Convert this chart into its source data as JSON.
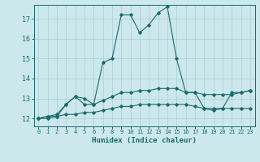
{
  "background_color": "#cce8ec",
  "grid_color": "#aacdd4",
  "line_color": "#1a6b6b",
  "xlabel": "Humidex (Indice chaleur)",
  "xlim": [
    -0.5,
    23.5
  ],
  "ylim": [
    11.6,
    17.7
  ],
  "yticks": [
    12,
    13,
    14,
    15,
    16,
    17
  ],
  "xticks": [
    0,
    1,
    2,
    3,
    4,
    5,
    6,
    7,
    8,
    9,
    10,
    11,
    12,
    13,
    14,
    15,
    16,
    17,
    18,
    19,
    20,
    21,
    22,
    23
  ],
  "series1_x": [
    0,
    1,
    2,
    3,
    4,
    5,
    6,
    7,
    8,
    9,
    10,
    11,
    12,
    13,
    14,
    15,
    16,
    17,
    18,
    19,
    20,
    21,
    22,
    23
  ],
  "series1_y": [
    12.0,
    12.1,
    12.1,
    12.7,
    13.1,
    13.0,
    12.7,
    14.8,
    15.0,
    17.2,
    17.2,
    16.3,
    16.7,
    17.3,
    17.6,
    15.0,
    13.3,
    13.3,
    12.5,
    12.4,
    12.5,
    13.3,
    13.3,
    13.4
  ],
  "series2_x": [
    0,
    1,
    2,
    3,
    4,
    5,
    6,
    7,
    8,
    9,
    10,
    11,
    12,
    13,
    14,
    15,
    16,
    17,
    18,
    19,
    20,
    21,
    22,
    23
  ],
  "series2_y": [
    12.0,
    12.1,
    12.2,
    12.7,
    13.1,
    12.7,
    12.7,
    12.9,
    13.1,
    13.3,
    13.3,
    13.4,
    13.4,
    13.5,
    13.5,
    13.5,
    13.3,
    13.3,
    13.2,
    13.2,
    13.2,
    13.2,
    13.3,
    13.4
  ],
  "series3_x": [
    0,
    1,
    2,
    3,
    4,
    5,
    6,
    7,
    8,
    9,
    10,
    11,
    12,
    13,
    14,
    15,
    16,
    17,
    18,
    19,
    20,
    21,
    22,
    23
  ],
  "series3_y": [
    12.0,
    12.0,
    12.1,
    12.2,
    12.2,
    12.3,
    12.3,
    12.4,
    12.5,
    12.6,
    12.6,
    12.7,
    12.7,
    12.7,
    12.7,
    12.7,
    12.7,
    12.6,
    12.5,
    12.5,
    12.5,
    12.5,
    12.5,
    12.5
  ],
  "figsize": [
    3.2,
    2.0
  ],
  "dpi": 100
}
